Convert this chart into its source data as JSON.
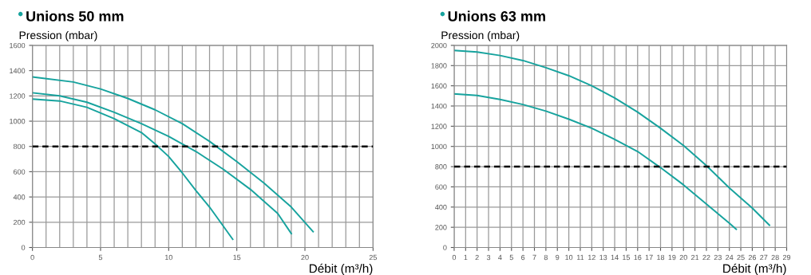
{
  "chart_data": [
    {
      "type": "line",
      "title": "Unions 50 mm",
      "ylabel": "Pression (mbar)",
      "xlabel": "Débit (m³/h)",
      "xlim": [
        0,
        25
      ],
      "xticks": [
        0,
        5,
        10,
        15,
        20,
        25
      ],
      "ylim": [
        0,
        1600
      ],
      "yticks": [
        0,
        200,
        400,
        600,
        800,
        1000,
        1200,
        1400,
        1600
      ],
      "grid": true,
      "series": [
        {
          "color": "#17a39e",
          "x": [
            0,
            3,
            5,
            7,
            9,
            11,
            13,
            15,
            17,
            19,
            20.6
          ],
          "values": [
            1350,
            1310,
            1255,
            1180,
            1090,
            980,
            840,
            680,
            510,
            320,
            125
          ]
        },
        {
          "color": "#17a39e",
          "x": [
            0,
            2,
            4,
            6,
            8,
            10,
            12,
            14,
            16,
            18,
            19
          ],
          "values": [
            1225,
            1200,
            1150,
            1070,
            980,
            880,
            760,
            620,
            460,
            270,
            110
          ]
        },
        {
          "color": "#17a39e",
          "x": [
            0,
            2,
            4,
            6,
            8,
            9,
            10,
            11,
            12,
            13,
            14,
            14.7
          ],
          "values": [
            1175,
            1160,
            1110,
            1020,
            910,
            820,
            720,
            590,
            450,
            320,
            170,
            65
          ]
        }
      ],
      "ref_lines": [
        {
          "axis": "y",
          "value": 800,
          "color": "#000000",
          "line_style": "dashed"
        }
      ]
    },
    {
      "type": "line",
      "title": "Unions 63 mm",
      "ylabel": "Pression (mbar)",
      "xlabel": "Débit (m³/h)",
      "xlim": [
        0,
        29
      ],
      "xticks": [
        0,
        1,
        2,
        3,
        4,
        5,
        6,
        7,
        8,
        9,
        10,
        11,
        12,
        13,
        14,
        15,
        16,
        17,
        18,
        19,
        20,
        21,
        22,
        23,
        24,
        25,
        26,
        27,
        28,
        29
      ],
      "ylim": [
        0,
        2000
      ],
      "yticks": [
        0,
        200,
        400,
        600,
        800,
        1000,
        1200,
        1400,
        1600,
        1800,
        2000
      ],
      "grid": true,
      "series": [
        {
          "color": "#17a39e",
          "x": [
            0,
            2,
            4,
            6,
            8,
            10,
            12,
            14,
            16,
            18,
            20,
            22,
            24,
            26,
            27.5
          ],
          "values": [
            1950,
            1935,
            1900,
            1850,
            1780,
            1700,
            1600,
            1480,
            1340,
            1180,
            1010,
            810,
            590,
            390,
            220
          ]
        },
        {
          "color": "#17a39e",
          "x": [
            0,
            2,
            4,
            6,
            8,
            10,
            12,
            14,
            16,
            18,
            20,
            22,
            24,
            24.6
          ],
          "values": [
            1520,
            1505,
            1465,
            1415,
            1350,
            1270,
            1180,
            1070,
            950,
            790,
            620,
            430,
            240,
            180
          ]
        }
      ],
      "ref_lines": [
        {
          "axis": "y",
          "value": 800,
          "color": "#000000",
          "line_style": "dashed"
        }
      ]
    }
  ]
}
